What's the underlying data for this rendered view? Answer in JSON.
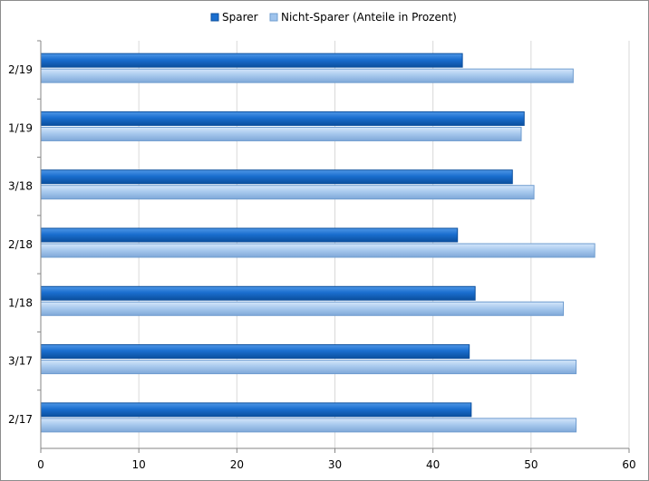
{
  "chart_data": {
    "type": "bar",
    "orientation": "horizontal",
    "title": "",
    "xlabel": "",
    "ylabel": "",
    "categories": [
      "2/19",
      "1/19",
      "3/18",
      "2/18",
      "1/18",
      "3/17",
      "2/17"
    ],
    "series": [
      {
        "name": "Sparer",
        "values": [
          43.0,
          49.3,
          48.1,
          42.5,
          44.3,
          43.7,
          43.9
        ],
        "color": "#1a6ecf"
      },
      {
        "name": "Nicht-Sparer (Anteile in Prozent)",
        "values": [
          54.3,
          49.0,
          50.3,
          56.5,
          53.3,
          54.6,
          54.6
        ],
        "color": "#9ec3ec"
      }
    ],
    "xlim": [
      0,
      60
    ],
    "xticks": [
      0,
      10,
      20,
      30,
      40,
      50,
      60
    ],
    "grid": "vertical",
    "legend": "top-center"
  },
  "colors": {
    "sparer_dark": "#0b4f9e",
    "nicht_sparer_dark": "#6f9ccf",
    "grid": "#d9d9d9",
    "axis": "#868686"
  }
}
